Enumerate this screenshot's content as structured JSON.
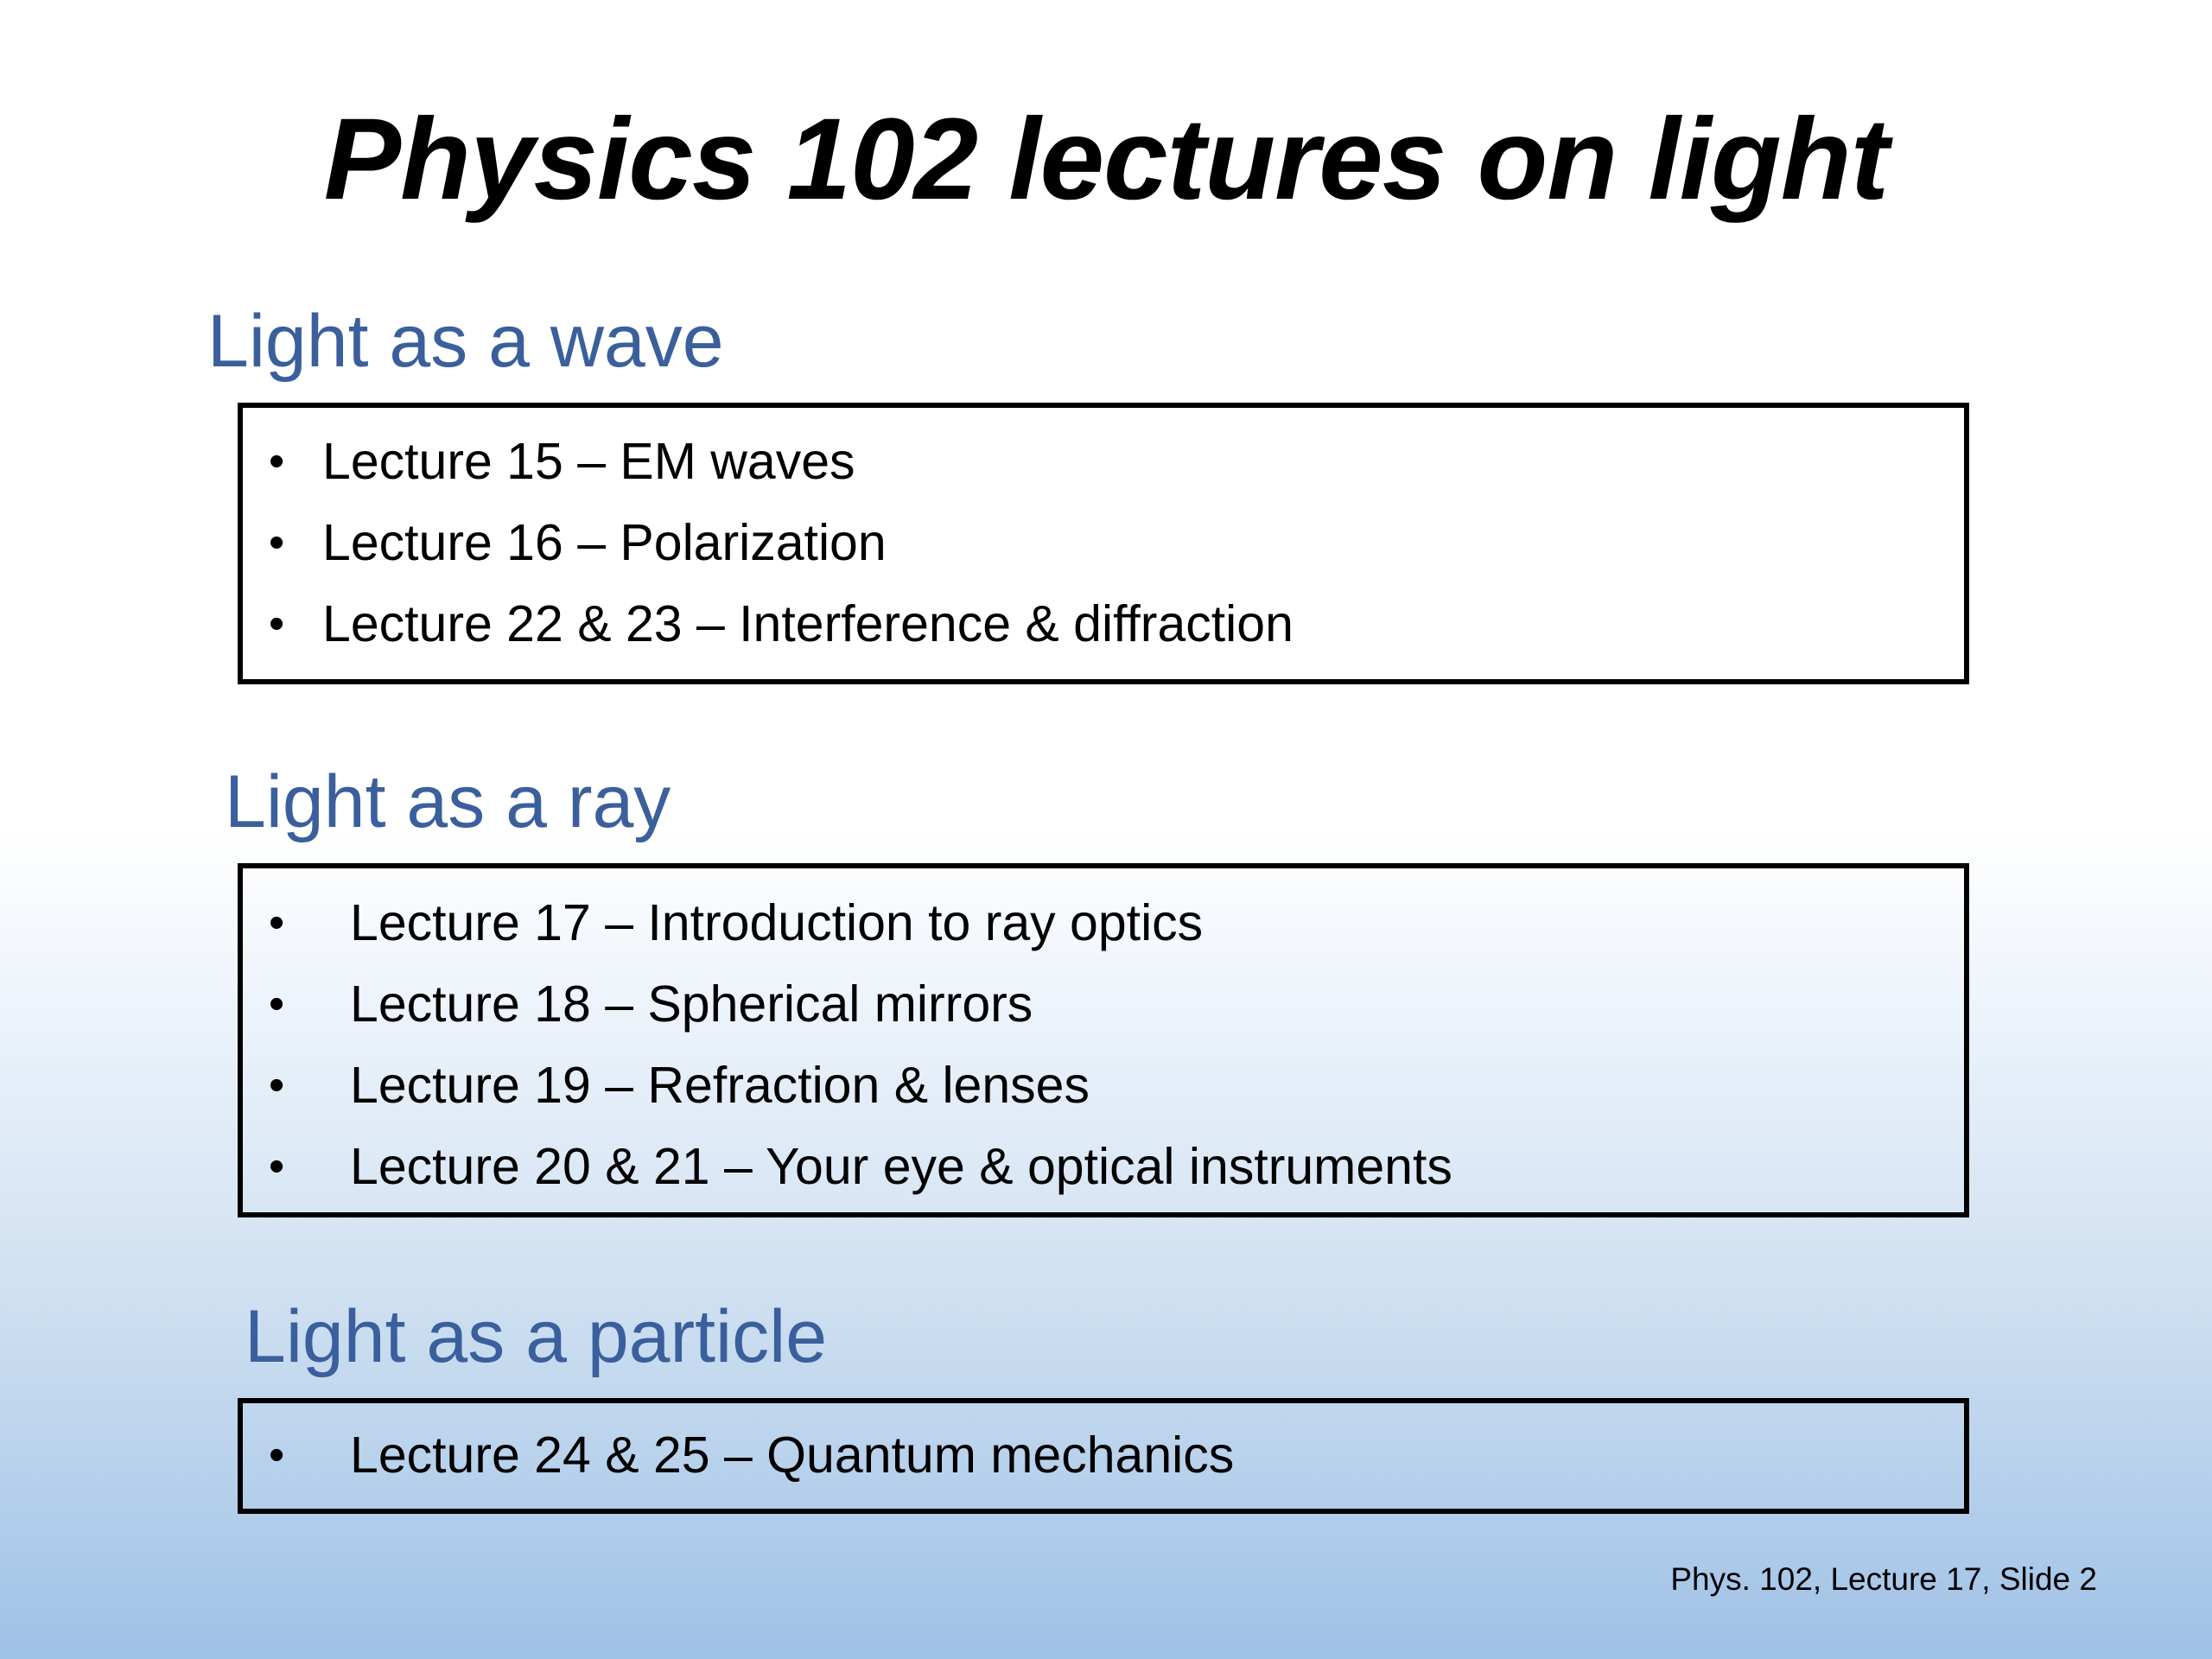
{
  "slide": {
    "title": "Physics 102 lectures on light",
    "sections": [
      {
        "heading": "Light as a wave",
        "items": [
          "Lecture 15 – EM waves",
          "Lecture 16 – Polarization",
          "Lecture 22 & 23 – Interference & diffraction"
        ]
      },
      {
        "heading": "Light as a ray",
        "items": [
          "Lecture 17 – Introduction to ray optics",
          "Lecture 18 – Spherical mirrors",
          "Lecture 19 – Refraction & lenses",
          "Lecture 20 & 21 – Your eye & optical instruments"
        ]
      },
      {
        "heading": "Light as a particle",
        "items": [
          "Lecture 24 & 25 – Quantum mechanics"
        ]
      }
    ],
    "bullet": "•",
    "footer": "Phys. 102, Lecture 17, Slide 2",
    "colors": {
      "heading": "#3a5f9c",
      "background_top": "#ffffff",
      "background_bottom": "#9fc1e6"
    }
  }
}
